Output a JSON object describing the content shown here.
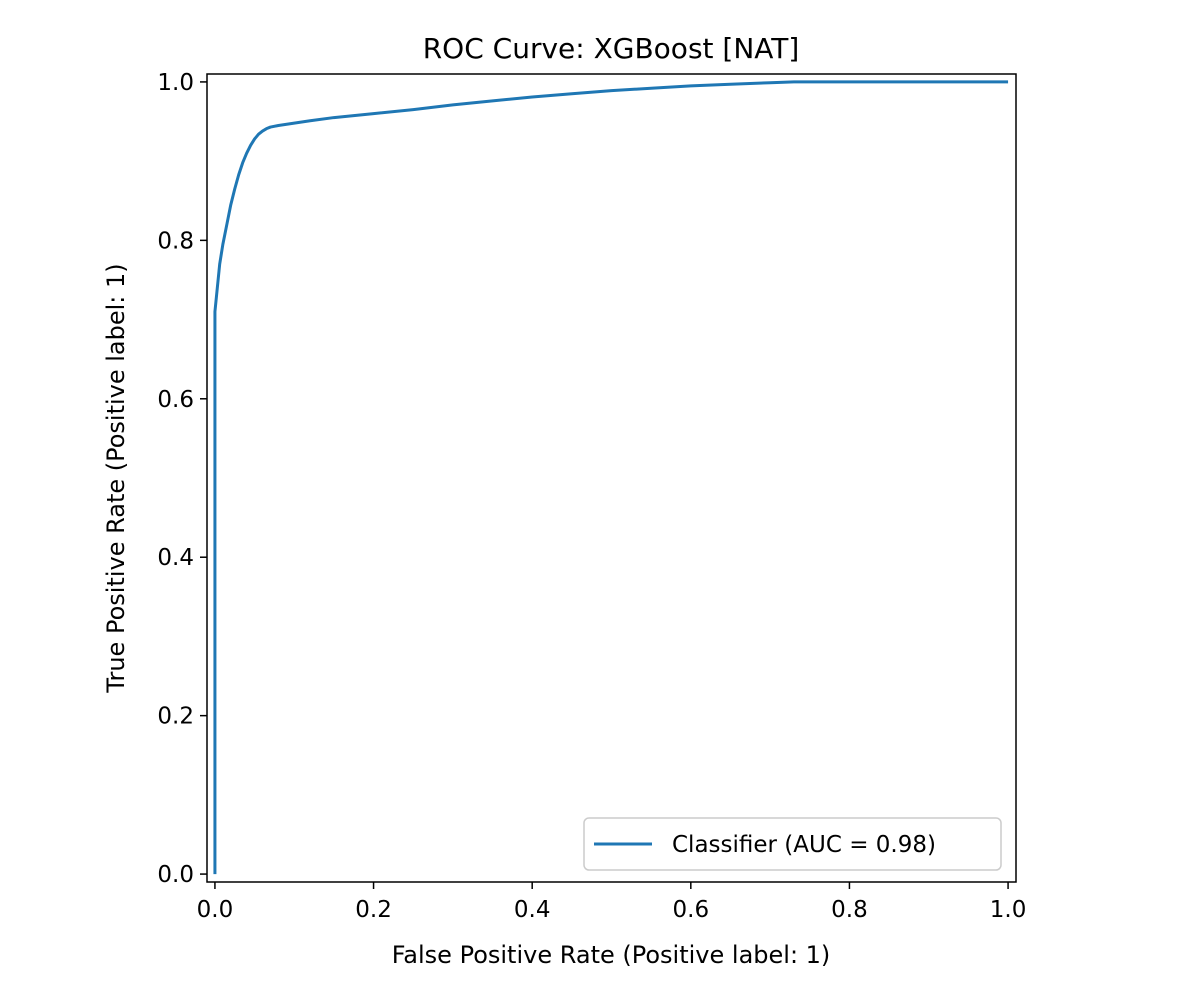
{
  "chart_data": {
    "type": "line",
    "title": "ROC Curve: XGBoost [NAT]",
    "xlabel": "False Positive Rate (Positive label: 1)",
    "ylabel": "True Positive Rate (Positive label: 1)",
    "xlim": [
      -0.01,
      1.01
    ],
    "ylim": [
      -0.01,
      1.01
    ],
    "xticks": [
      {
        "value": 0.0,
        "label": "0.0"
      },
      {
        "value": 0.2,
        "label": "0.2"
      },
      {
        "value": 0.4,
        "label": "0.4"
      },
      {
        "value": 0.6,
        "label": "0.6"
      },
      {
        "value": 0.8,
        "label": "0.8"
      },
      {
        "value": 1.0,
        "label": "1.0"
      }
    ],
    "yticks": [
      {
        "value": 0.0,
        "label": "0.0"
      },
      {
        "value": 0.2,
        "label": "0.2"
      },
      {
        "value": 0.4,
        "label": "0.4"
      },
      {
        "value": 0.6,
        "label": "0.6"
      },
      {
        "value": 0.8,
        "label": "0.8"
      },
      {
        "value": 1.0,
        "label": "1.0"
      }
    ],
    "grid": false,
    "legend": "lower-right",
    "series": [
      {
        "name": "Classifier (AUC = 0.98)",
        "color": "#1f77b4",
        "points": [
          [
            0.0,
            0.0
          ],
          [
            0.0,
            0.45
          ],
          [
            0.0,
            0.71
          ],
          [
            0.003,
            0.74
          ],
          [
            0.006,
            0.77
          ],
          [
            0.01,
            0.795
          ],
          [
            0.015,
            0.82
          ],
          [
            0.02,
            0.845
          ],
          [
            0.025,
            0.865
          ],
          [
            0.03,
            0.883
          ],
          [
            0.035,
            0.898
          ],
          [
            0.04,
            0.91
          ],
          [
            0.045,
            0.92
          ],
          [
            0.05,
            0.928
          ],
          [
            0.055,
            0.934
          ],
          [
            0.06,
            0.938
          ],
          [
            0.065,
            0.941
          ],
          [
            0.07,
            0.943
          ],
          [
            0.08,
            0.945
          ],
          [
            0.1,
            0.948
          ],
          [
            0.12,
            0.951
          ],
          [
            0.15,
            0.955
          ],
          [
            0.2,
            0.96
          ],
          [
            0.25,
            0.965
          ],
          [
            0.3,
            0.971
          ],
          [
            0.35,
            0.976
          ],
          [
            0.4,
            0.981
          ],
          [
            0.45,
            0.985
          ],
          [
            0.5,
            0.989
          ],
          [
            0.55,
            0.992
          ],
          [
            0.6,
            0.995
          ],
          [
            0.65,
            0.997
          ],
          [
            0.7,
            0.999
          ],
          [
            0.73,
            1.0
          ],
          [
            1.0,
            1.0
          ]
        ]
      }
    ]
  }
}
